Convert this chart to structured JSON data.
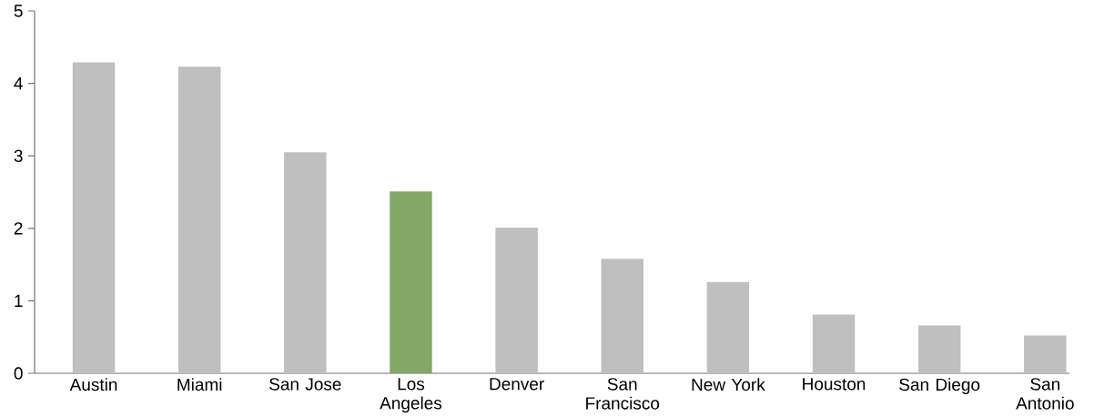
{
  "chart_data": {
    "type": "bar",
    "categories": [
      "Austin",
      "Miami",
      "San Jose",
      "Los Angeles",
      "Denver",
      "San Francisco",
      "New York",
      "Houston",
      "San Diego",
      "San Antonio"
    ],
    "values": [
      4.29,
      4.23,
      3.05,
      2.51,
      2.01,
      1.58,
      1.26,
      0.81,
      0.66,
      0.52
    ],
    "colors": [
      "#bfbfbf",
      "#bfbfbf",
      "#bfbfbf",
      "#82a866",
      "#bfbfbf",
      "#bfbfbf",
      "#bfbfbf",
      "#bfbfbf",
      "#bfbfbf",
      "#bfbfbf"
    ],
    "ylim": [
      0,
      5
    ],
    "yticks": [
      0,
      1,
      2,
      3,
      4,
      5
    ],
    "grid": false
  }
}
